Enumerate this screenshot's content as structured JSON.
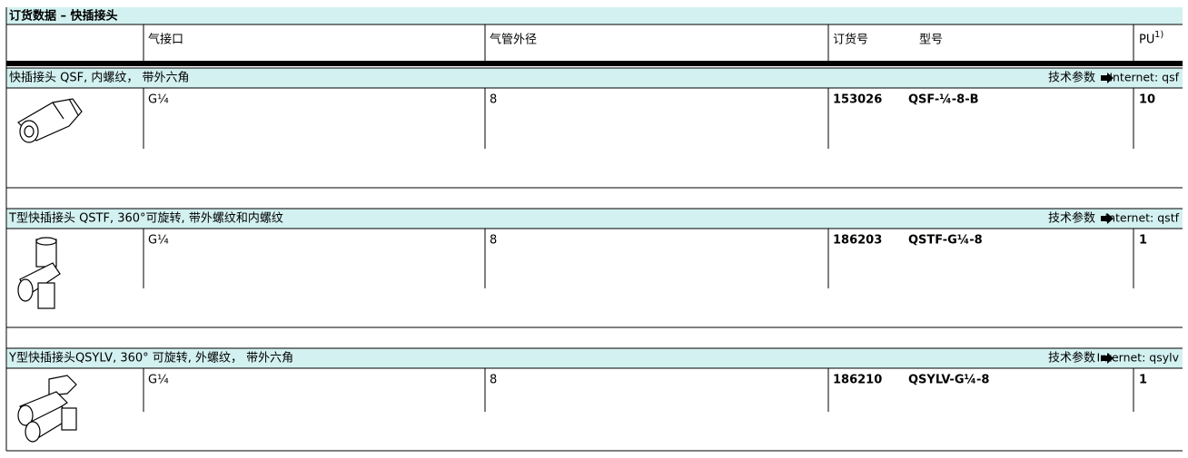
{
  "header": {
    "title": "订货数据 – 快插接头"
  },
  "table": {
    "columns": [
      "气接口",
      "气管外径",
      "订货号",
      "型号"
    ],
    "pu": {
      "label": "PU",
      "note": "1)"
    },
    "sections": [
      {
        "title": "快插接头 QSF, 内螺纹， 带外六角",
        "link_label": "技术参数",
        "link": "Internet: qsf",
        "row": [
          "G¼",
          "8",
          "153026",
          "QSF-¼-8-B",
          "10"
        ]
      },
      {
        "title": "T型快插接头 QSTF, 360°可旋转, 带外螺纹和内螺纹",
        "link_label": "技术参数",
        "link": "Internet: qstf",
        "row": [
          "G¼",
          "8",
          "186203",
          "QSTF-G¼-8",
          "1"
        ]
      },
      {
        "title": "Y型快插接头QSYLV, 360° 可旋转, 外螺纹， 带外六角",
        "link_label": "技术参数",
        "link": "Internet: qsylv",
        "row": [
          "G¼",
          "8",
          "186210",
          "QSYLV-G¼-8",
          "1"
        ]
      }
    ]
  }
}
